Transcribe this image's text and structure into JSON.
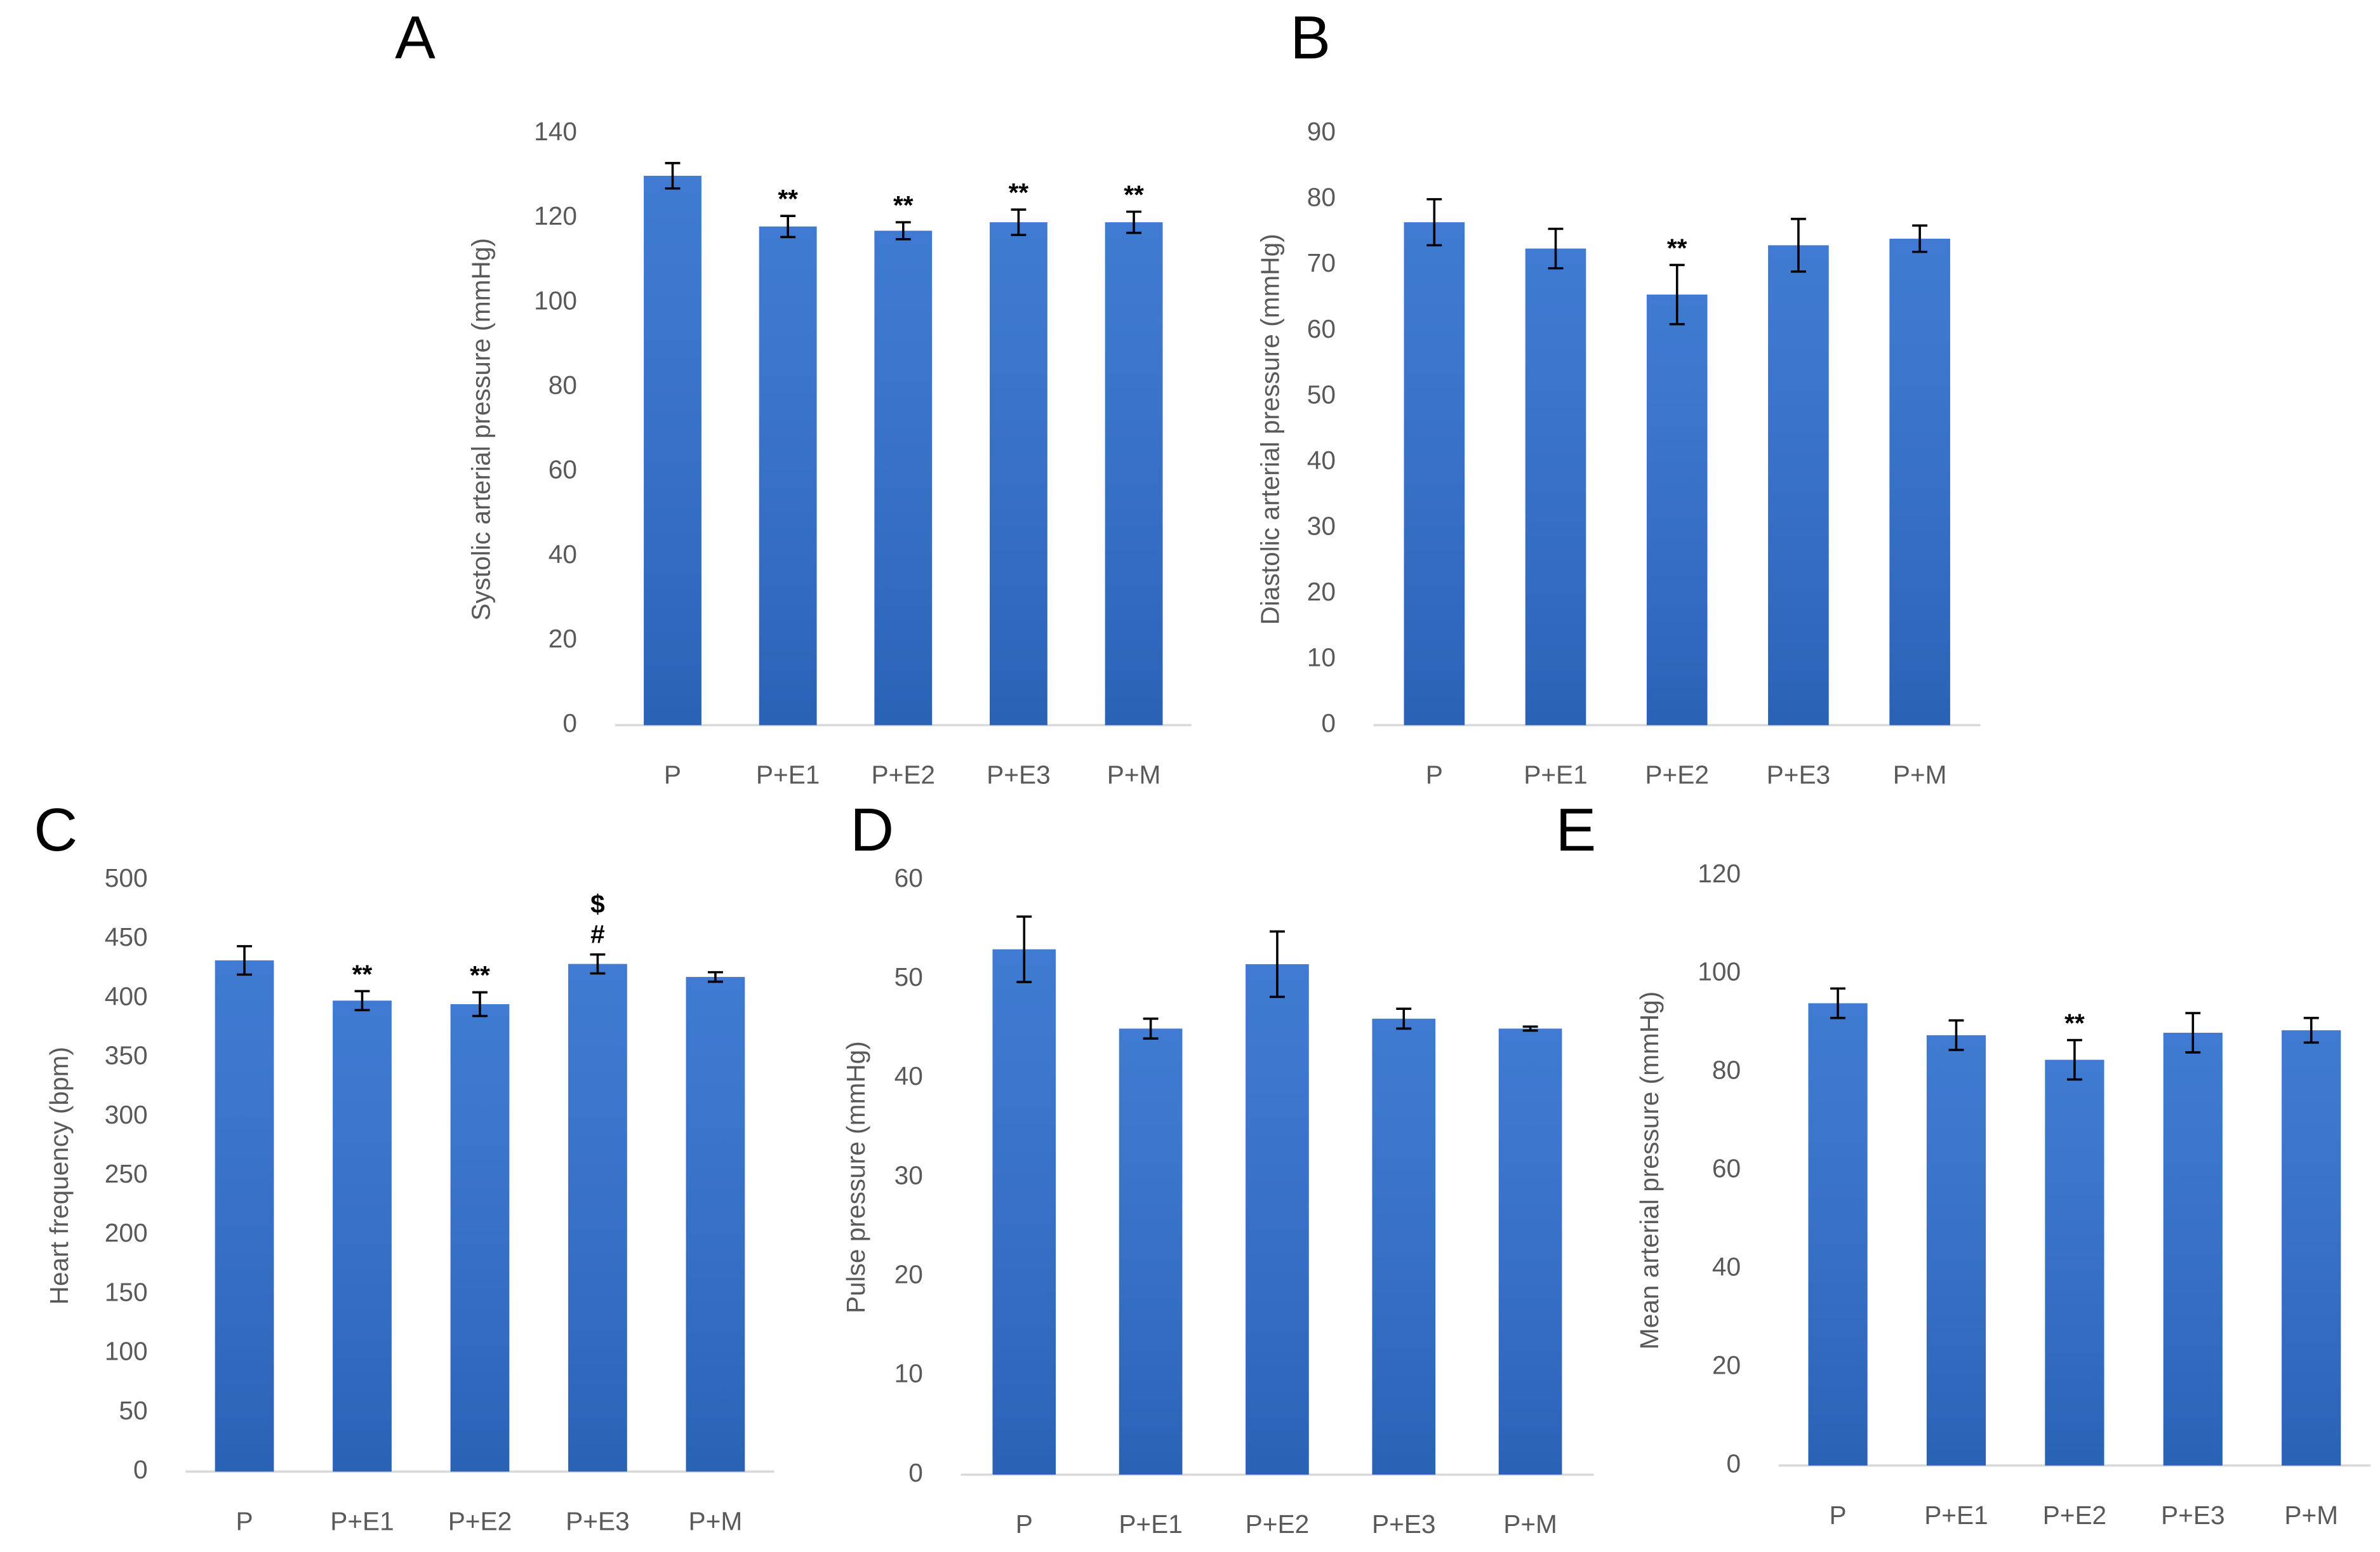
{
  "chart_data": [
    {
      "type": "bar",
      "panel": "A",
      "y_label": "Systolic arterial pressure (mmHg)",
      "categories": [
        "P",
        "P+E1",
        "P+E2",
        "P+E3",
        "P+M"
      ],
      "values": [
        130,
        118,
        117,
        119,
        119
      ],
      "errors": [
        3,
        2.5,
        2,
        3,
        2.5
      ],
      "annotations": [
        null,
        "**",
        "**",
        "**",
        "**"
      ],
      "color": "#2f6fce",
      "ylim": [
        0,
        140
      ],
      "yticks": [
        0,
        20,
        40,
        60,
        80,
        100,
        120,
        140
      ]
    },
    {
      "type": "bar",
      "panel": "B",
      "y_label": "Diastolic arterial pressure (mmHg)",
      "categories": [
        "P",
        "P+E1",
        "P+E2",
        "P+E3",
        "P+M"
      ],
      "values": [
        76.5,
        72.5,
        65.5,
        73,
        74
      ],
      "errors": [
        3.5,
        3,
        4.5,
        4,
        2
      ],
      "annotations": [
        null,
        null,
        "**",
        null,
        null
      ],
      "color": "#2f6fce",
      "ylim": [
        0,
        90
      ],
      "yticks": [
        0,
        10,
        20,
        30,
        40,
        50,
        60,
        70,
        80,
        90
      ]
    },
    {
      "type": "bar",
      "panel": "C",
      "y_label": "Heart frequency (bpm)",
      "categories": [
        "P",
        "P+E1",
        "P+E2",
        "P+E3",
        "P+M"
      ],
      "values": [
        432,
        398,
        395,
        429,
        418
      ],
      "errors": [
        12,
        8,
        10,
        8,
        4
      ],
      "annotations": [
        null,
        "**",
        "**",
        [
          "$",
          "#"
        ],
        null
      ],
      "color": "#2f6fce",
      "ylim": [
        0,
        500
      ],
      "yticks": [
        0,
        50,
        100,
        150,
        200,
        250,
        300,
        350,
        400,
        450,
        500
      ]
    },
    {
      "type": "bar",
      "panel": "D",
      "y_label": "Pulse pressure (mmHg)",
      "categories": [
        "P",
        "P+E1",
        "P+E2",
        "P+E3",
        "P+M"
      ],
      "values": [
        53,
        45,
        51.5,
        46,
        45
      ],
      "errors": [
        3.3,
        1,
        3.3,
        1,
        0.2
      ],
      "annotations": [
        null,
        null,
        null,
        null,
        null
      ],
      "color": "#2f6fce",
      "ylim": [
        0,
        60
      ],
      "yticks": [
        0,
        10,
        20,
        30,
        40,
        50,
        60
      ]
    },
    {
      "type": "bar",
      "panel": "E",
      "y_label": "Mean arterial pressure (mmHg)",
      "categories": [
        "P",
        "P+E1",
        "P+E2",
        "P+E3",
        "P+M"
      ],
      "values": [
        94,
        87.5,
        82.5,
        88,
        88.5
      ],
      "errors": [
        3,
        3,
        4,
        4,
        2.5
      ],
      "annotations": [
        null,
        null,
        "**",
        null,
        null
      ],
      "color": "#2f6fce",
      "ylim": [
        0,
        120
      ],
      "yticks": [
        0,
        20,
        40,
        60,
        80,
        100,
        120
      ]
    }
  ]
}
